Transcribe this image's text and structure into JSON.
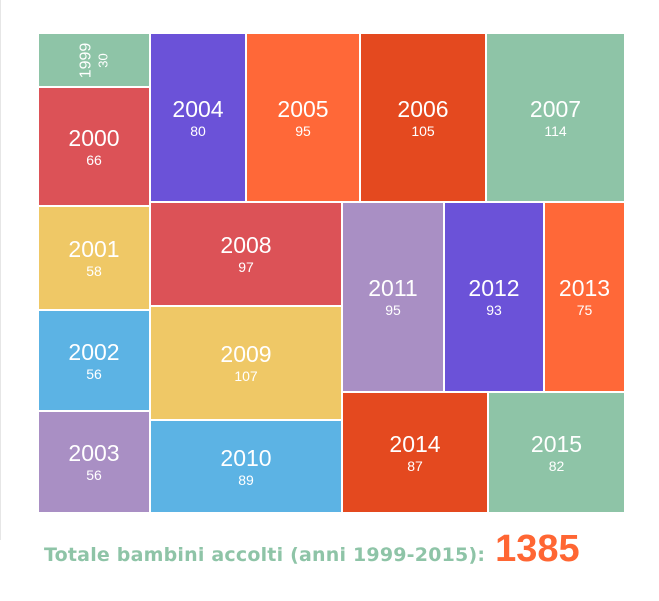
{
  "chart_data": {
    "type": "treemap",
    "categories": [
      "1999",
      "2000",
      "2001",
      "2002",
      "2003",
      "2004",
      "2005",
      "2006",
      "2007",
      "2008",
      "2009",
      "2010",
      "2011",
      "2012",
      "2013",
      "2014",
      "2015"
    ],
    "values": [
      30,
      66,
      58,
      56,
      56,
      80,
      95,
      105,
      114,
      97,
      107,
      89,
      95,
      93,
      75,
      87,
      82
    ],
    "colors": [
      "#8ec4a7",
      "#dc5257",
      "#efc866",
      "#5cb3e4",
      "#a98fc4",
      "#6b52d8",
      "#ff6838",
      "#e4491f",
      "#8ec4a7",
      "#dc5257",
      "#efc866",
      "#5cb3e4",
      "#a98fc4",
      "#6b52d8",
      "#ff6838",
      "#e4491f",
      "#8ec4a7"
    ]
  },
  "footer": {
    "label": "Totale bambini accolti (anni 1999-2015):",
    "total": "1385"
  }
}
